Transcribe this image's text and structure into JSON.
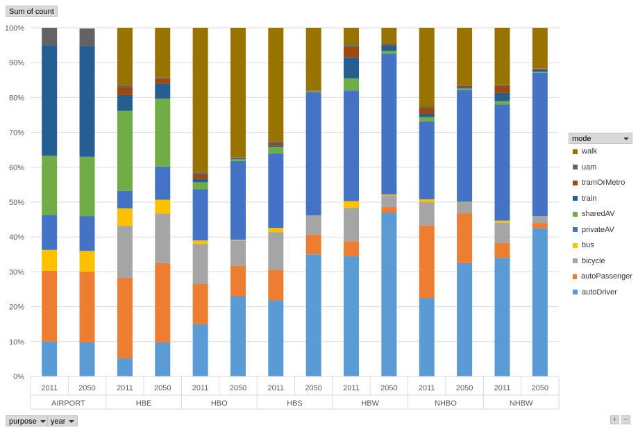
{
  "value_field": "Sum of count",
  "filter_buttons": [
    {
      "label": "purpose"
    },
    {
      "label": "year"
    }
  ],
  "legend": {
    "title": "mode"
  },
  "zoom": {
    "plus": "+",
    "minus": "−"
  },
  "chart_data": {
    "type": "bar",
    "stacked": "percent",
    "ylim": [
      0,
      100
    ],
    "y_ticks": [
      "0%",
      "10%",
      "20%",
      "30%",
      "40%",
      "50%",
      "60%",
      "70%",
      "80%",
      "90%",
      "100%"
    ],
    "grid": true,
    "legend_position": "right",
    "groups": [
      "AIRPORT",
      "HBE",
      "HBO",
      "HBS",
      "HBW",
      "NHBO",
      "NHBW"
    ],
    "categories": [
      "2011",
      "2050",
      "2011",
      "2050",
      "2011",
      "2050",
      "2011",
      "2050",
      "2011",
      "2050",
      "2011",
      "2050",
      "2011",
      "2050"
    ],
    "series": [
      {
        "name": "autoDriver",
        "color": "#5b9bd5",
        "values": [
          10,
          9.8,
          5.2,
          9.8,
          15,
          23,
          21.8,
          35,
          34.5,
          47,
          22.5,
          32.5,
          34,
          42.5
        ]
      },
      {
        "name": "autoPassenger",
        "color": "#ed7d31",
        "values": [
          20.3,
          20.2,
          23,
          22.7,
          11.5,
          8.7,
          8.8,
          5.7,
          4.3,
          1.6,
          20.8,
          14.3,
          4.3,
          1.5
        ]
      },
      {
        "name": "bicycle",
        "color": "#a5a5a5",
        "values": [
          0,
          0,
          15,
          14.2,
          11.5,
          7.3,
          10.8,
          5.5,
          9.5,
          3.3,
          6.7,
          3.2,
          5.8,
          2
        ]
      },
      {
        "name": "bus",
        "color": "#ffc000",
        "values": [
          6,
          6,
          5,
          4,
          1,
          0.2,
          1.2,
          0,
          2,
          0.3,
          0.8,
          0.1,
          0.6,
          0
        ]
      },
      {
        "name": "privateAV",
        "color": "#4472c4",
        "values": [
          10,
          10,
          5,
          9.5,
          14.7,
          22.6,
          21.4,
          35.3,
          31.7,
          40.4,
          22.3,
          32,
          33.3,
          41.1
        ]
      },
      {
        "name": "sharedAV",
        "color": "#70ad47",
        "values": [
          17,
          17,
          23,
          19.5,
          2,
          0.5,
          1.8,
          0.3,
          3.5,
          0.8,
          1.3,
          0.5,
          1,
          0.3
        ]
      },
      {
        "name": "train",
        "color": "#255e91",
        "values": [
          31.7,
          31.8,
          4.5,
          4.3,
          1,
          0.3,
          0.5,
          0.1,
          6,
          1.6,
          0.9,
          0.4,
          2.3,
          0.6
        ]
      },
      {
        "name": "tramOrMetro",
        "color": "#9e480e",
        "values": [
          0,
          0,
          2.3,
          1.4,
          1.3,
          0.1,
          0.8,
          0.1,
          3,
          0.3,
          1.7,
          0.4,
          2,
          0.3
        ]
      },
      {
        "name": "uam",
        "color": "#636363",
        "values": [
          5,
          5,
          0.5,
          0.3,
          0.5,
          0.1,
          0.4,
          0,
          0.5,
          0.2,
          0.4,
          0.1,
          0.4,
          0.1
        ]
      },
      {
        "name": "walk",
        "color": "#997300",
        "values": [
          0,
          0,
          16.5,
          14.3,
          41.5,
          37.2,
          32.5,
          18,
          5,
          4.5,
          22.6,
          16.5,
          16.3,
          11.6
        ]
      }
    ]
  }
}
